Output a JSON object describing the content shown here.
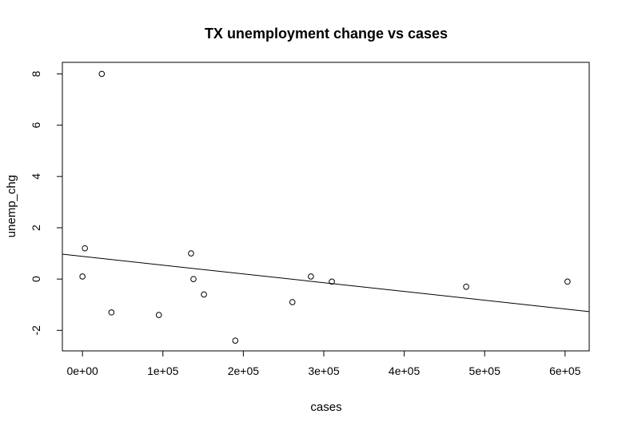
{
  "chart_data": {
    "type": "scatter",
    "title": "TX unemployment change vs cases",
    "xlabel": "cases",
    "ylabel": "unemp_chg",
    "xlim": [
      -25000,
      630000
    ],
    "ylim": [
      -2.8,
      8.45
    ],
    "x_ticks": [
      0,
      100000,
      200000,
      300000,
      400000,
      500000,
      600000
    ],
    "x_tick_labels": [
      "0e+00",
      "1e+05",
      "2e+05",
      "3e+05",
      "4e+05",
      "5e+05",
      "6e+05"
    ],
    "y_ticks": [
      -2,
      0,
      2,
      4,
      6,
      8
    ],
    "y_tick_labels": [
      "-2",
      "0",
      "2",
      "4",
      "6",
      "8"
    ],
    "grid": false,
    "legend": "none",
    "points": [
      {
        "x": 0,
        "y": 0.1
      },
      {
        "x": 3000,
        "y": 1.2
      },
      {
        "x": 24000,
        "y": 8.0
      },
      {
        "x": 36000,
        "y": -1.3
      },
      {
        "x": 95000,
        "y": -1.4
      },
      {
        "x": 135000,
        "y": 1.0
      },
      {
        "x": 138000,
        "y": 0.0
      },
      {
        "x": 151000,
        "y": -0.6
      },
      {
        "x": 190000,
        "y": -2.4
      },
      {
        "x": 261000,
        "y": -0.9
      },
      {
        "x": 284000,
        "y": 0.1
      },
      {
        "x": 310000,
        "y": -0.1
      },
      {
        "x": 477000,
        "y": -0.3
      },
      {
        "x": 603000,
        "y": -0.1
      }
    ],
    "fit_line": {
      "x": [
        -25000,
        630000
      ],
      "y": [
        0.97,
        -1.27
      ]
    }
  }
}
